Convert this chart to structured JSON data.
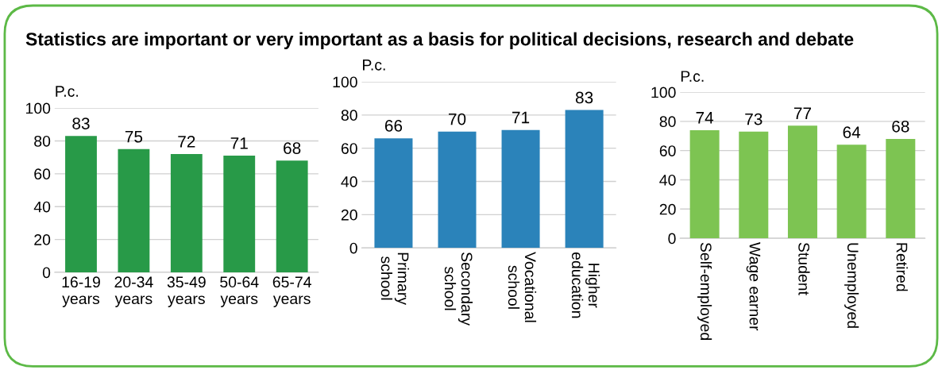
{
  "chart_data": [
    {
      "type": "bar",
      "title": "Statistics are important or very important as a basis for political decisions, research and debate",
      "ylabel": "P.c.",
      "categories": [
        "16-19\nyears",
        "20-34\nyears",
        "35-49\nyears",
        "50-64\nyears",
        "65-74\nyears"
      ],
      "values": [
        83,
        75,
        72,
        71,
        68
      ],
      "color": "#289a48",
      "ylim": [
        0,
        100
      ],
      "yticks": [
        0,
        20,
        40,
        60,
        80,
        100
      ],
      "grid": "y",
      "data_labels": true
    },
    {
      "type": "bar",
      "ylabel": "P.c.",
      "categories": [
        "Primary\nschool",
        "Secondary\nschool",
        "Vocational\nschool",
        "Higher\neducation"
      ],
      "values": [
        66,
        70,
        71,
        83
      ],
      "color": "#2b83ba",
      "ylim": [
        0,
        100
      ],
      "yticks": [
        0,
        20,
        40,
        60,
        80,
        100
      ],
      "grid": "y",
      "data_labels": true
    },
    {
      "type": "bar",
      "ylabel": "P.c.",
      "categories": [
        "Self-employed",
        "Wage earner",
        "Student",
        "Unemployed",
        "Retired"
      ],
      "values": [
        74,
        73,
        77,
        64,
        68
      ],
      "color": "#7dc452",
      "ylim": [
        0,
        100
      ],
      "yticks": [
        0,
        20,
        40,
        60,
        80,
        100
      ],
      "grid": "y",
      "data_labels": true
    }
  ]
}
